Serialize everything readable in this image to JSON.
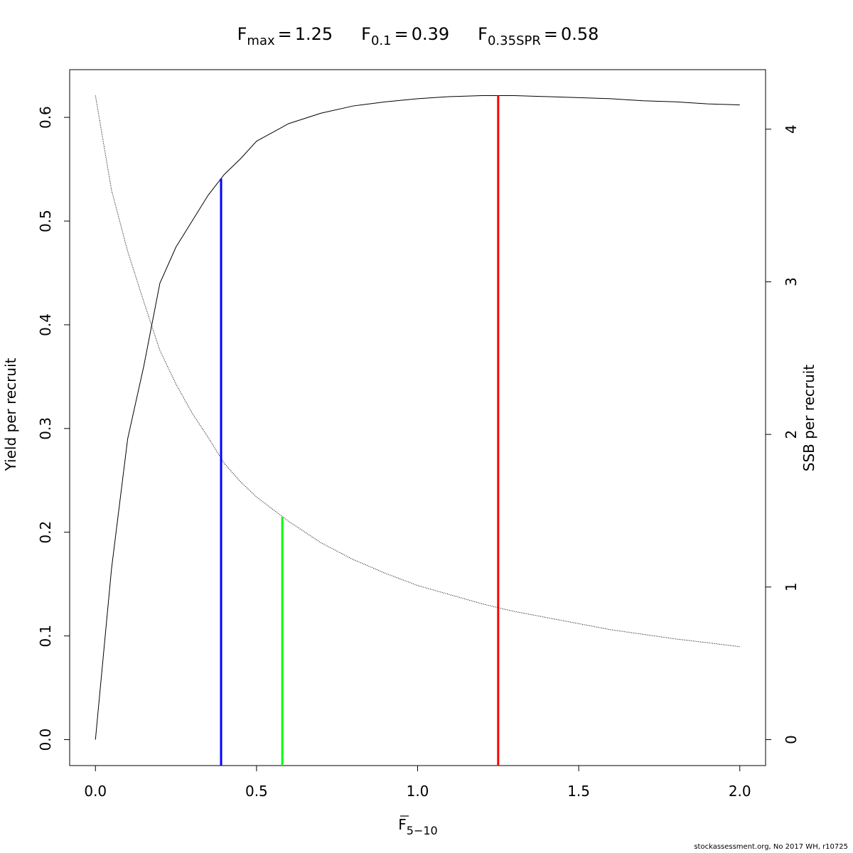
{
  "chart_data": {
    "type": "line",
    "reference_points": [
      {
        "symbol": "F",
        "subscript": "max",
        "value": 1.25,
        "color": "#ff0000",
        "top": 0.621,
        "top_axis": "y"
      },
      {
        "symbol": "F",
        "subscript": "0.1",
        "value": 0.39,
        "color": "#0000ff",
        "top": 0.541,
        "top_axis": "y"
      },
      {
        "symbol": "F",
        "subscript": "0.35SPR",
        "value": 0.58,
        "color": "#00ff00",
        "top": 1.46,
        "top_axis": "y2"
      }
    ],
    "title_relation": "=",
    "xlabel": {
      "symbol": "F",
      "subscript": "5−10"
    },
    "ylabel": "Yield per recruit",
    "y2label": "SSB per recruit",
    "footnote": "stockassessment.org, No  2017  WH, r10725",
    "x": [
      0,
      0.05,
      0.1,
      0.15,
      0.2,
      0.25,
      0.3,
      0.35,
      0.4,
      0.45,
      0.5,
      0.6,
      0.7,
      0.8,
      0.9,
      1.0,
      1.1,
      1.2,
      1.25,
      1.3,
      1.4,
      1.5,
      1.6,
      1.7,
      1.8,
      1.9,
      2.0
    ],
    "series": [
      {
        "color": "#000000",
        "dash": false,
        "axis": "y",
        "values": [
          0,
          0.165,
          0.29,
          0.36,
          0.44,
          0.475,
          0.5,
          0.525,
          0.545,
          0.56,
          0.577,
          0.594,
          0.604,
          0.611,
          0.615,
          0.618,
          0.62,
          0.621,
          0.621,
          0.621,
          0.62,
          0.619,
          0.618,
          0.616,
          0.615,
          0.613,
          0.612
        ]
      },
      {
        "color": "#000000",
        "dash": true,
        "axis": "y2",
        "values": [
          4.22,
          3.6,
          3.2,
          2.87,
          2.55,
          2.33,
          2.14,
          1.98,
          1.81,
          1.69,
          1.59,
          1.43,
          1.29,
          1.18,
          1.09,
          1.01,
          0.95,
          0.89,
          0.864,
          0.84,
          0.8,
          0.76,
          0.72,
          0.69,
          0.66,
          0.635,
          0.609
        ]
      }
    ],
    "xlim": [
      -0.08,
      2.08
    ],
    "xticks": [
      {
        "value": 0,
        "label": "0.0"
      },
      0.5,
      {
        "value": 1,
        "label": "1.0"
      },
      1.5,
      {
        "value": 2,
        "label": "2.0"
      }
    ],
    "ylim": [
      -0.025,
      0.646
    ],
    "yticks": [
      {
        "value": 0,
        "label": "0.0"
      },
      0.1,
      0.2,
      0.3,
      0.4,
      0.5,
      0.6
    ],
    "y2lim": [
      -0.17,
      4.39
    ],
    "y2ticks": [
      0,
      1,
      2,
      3,
      4
    ],
    "grid": false
  }
}
